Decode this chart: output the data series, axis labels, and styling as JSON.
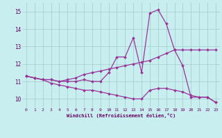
{
  "xlabel": "Windchill (Refroidissement éolien,°C)",
  "background_color": "#c8eef0",
  "grid_color": "#a0cccc",
  "line_color": "#993399",
  "xlim": [
    -0.5,
    23.5
  ],
  "ylim": [
    9.5,
    15.5
  ],
  "xticks": [
    0,
    1,
    2,
    3,
    4,
    5,
    6,
    7,
    8,
    9,
    10,
    11,
    12,
    13,
    14,
    15,
    16,
    17,
    18,
    19,
    20,
    21,
    22,
    23
  ],
  "yticks": [
    10,
    11,
    12,
    13,
    14,
    15
  ],
  "series": [
    [
      11.3,
      11.2,
      11.1,
      11.1,
      11.0,
      11.0,
      11.0,
      11.1,
      11.0,
      11.0,
      11.5,
      12.4,
      12.4,
      13.5,
      11.5,
      14.9,
      15.1,
      14.3,
      12.8,
      11.9,
      10.1,
      10.1,
      10.1,
      9.8
    ],
    [
      11.3,
      11.2,
      11.1,
      11.1,
      11.0,
      11.1,
      11.2,
      11.4,
      11.5,
      11.6,
      11.7,
      11.8,
      11.9,
      12.0,
      12.1,
      12.2,
      12.4,
      12.6,
      12.8,
      12.8,
      12.8,
      12.8,
      12.8,
      12.8
    ],
    [
      11.3,
      11.2,
      11.1,
      10.9,
      10.8,
      10.7,
      10.6,
      10.5,
      10.5,
      10.4,
      10.3,
      10.2,
      10.1,
      10.0,
      10.0,
      10.5,
      10.6,
      10.6,
      10.5,
      10.4,
      10.2,
      10.1,
      10.1,
      9.8
    ]
  ]
}
